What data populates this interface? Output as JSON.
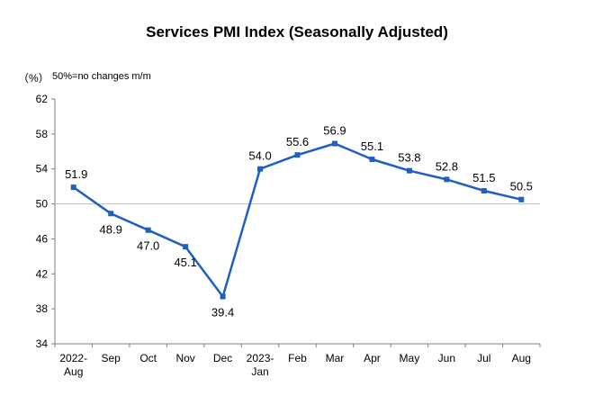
{
  "chart_data": {
    "type": "line",
    "title": "Services PMI Index (Seasonally Adjusted)",
    "ylabel": "（%）",
    "note": "50%=no changes m/m",
    "ylim": [
      34,
      62
    ],
    "yticks": [
      34,
      38,
      42,
      46,
      50,
      54,
      58,
      62
    ],
    "reference_line": 50,
    "grid": false,
    "categories": [
      [
        "2022-",
        "Aug"
      ],
      [
        "Sep"
      ],
      [
        "Oct"
      ],
      [
        "Nov"
      ],
      [
        "Dec"
      ],
      [
        "2023-",
        "Jan"
      ],
      [
        "Feb"
      ],
      [
        "Mar"
      ],
      [
        "Apr"
      ],
      [
        "May"
      ],
      [
        "Jun"
      ],
      [
        "Jul"
      ],
      [
        "Aug"
      ]
    ],
    "values": [
      51.9,
      48.9,
      47.0,
      45.1,
      39.4,
      54.0,
      55.6,
      56.9,
      55.1,
      53.8,
      52.8,
      51.5,
      50.5
    ],
    "value_labels": [
      "51.9",
      "48.9",
      "47.0",
      "45.1",
      "39.4",
      "54.0",
      "55.6",
      "56.9",
      "55.1",
      "53.8",
      "52.8",
      "51.5",
      "50.5"
    ],
    "line_color": "#1f5fbf"
  }
}
